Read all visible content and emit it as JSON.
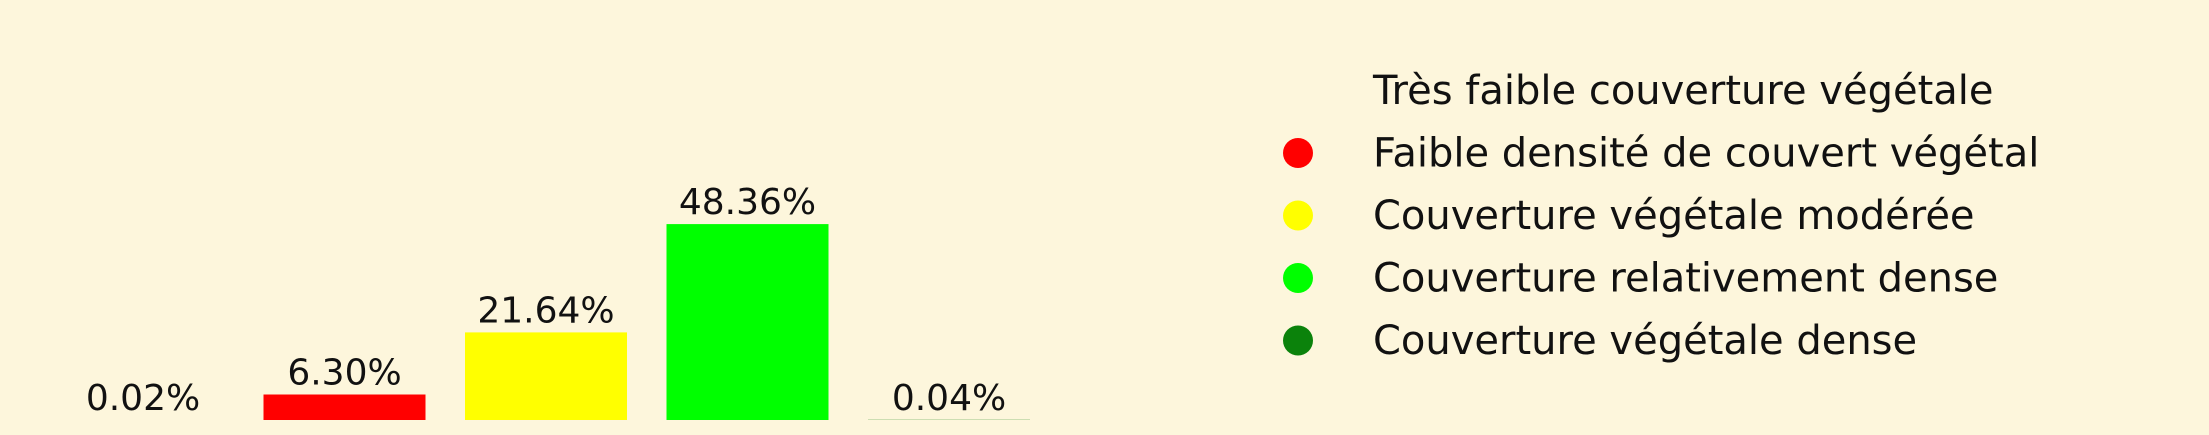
{
  "chart_data": {
    "type": "bar",
    "categories": [
      "Très faible couverture végétale",
      "Faible densité de couvert végétal",
      "Couverture végétale modérée",
      "Couverture relativement dense",
      "Couverture végétale dense"
    ],
    "values": [
      0.02,
      6.3,
      21.64,
      48.36,
      0.04
    ],
    "value_labels": [
      "0.02%",
      "6.30%",
      "21.64%",
      "48.36%",
      "0.04%"
    ],
    "colors": [
      "#fdf6dc",
      "#ff0000",
      "#ffff00",
      "#00ff00",
      "#0b820b"
    ],
    "legend": {
      "position": "right",
      "entries": [
        {
          "label": "Très faible couverture végétale",
          "color": "#fdf6dc"
        },
        {
          "label": "Faible densité de couvert végétal",
          "color": "#ff0000"
        },
        {
          "label": "Couverture végétale modérée",
          "color": "#ffff00"
        },
        {
          "label": "Couverture relativement dense",
          "color": "#00ff00"
        },
        {
          "label": "Couverture végétale dense",
          "color": "#0b820b"
        }
      ]
    },
    "grid": false,
    "axes_visible": false
  }
}
